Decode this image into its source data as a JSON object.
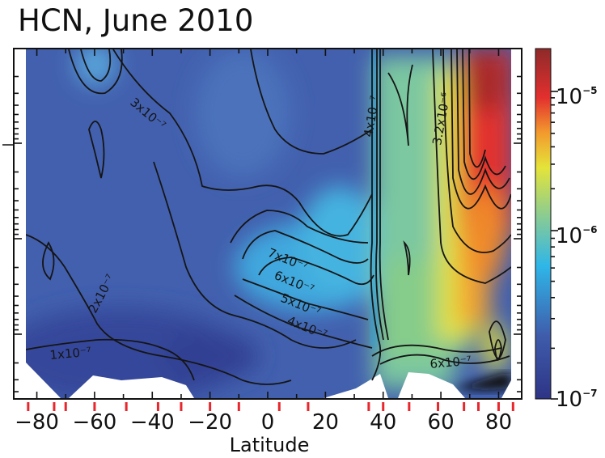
{
  "chart_data": {
    "type": "heatmap",
    "title": "HCN, June 2010",
    "xlabel": "Latitude",
    "ylabel": "",
    "xlim": [
      -88,
      88
    ],
    "x_ticks": [
      -80,
      -60,
      -40,
      -20,
      0,
      20,
      40,
      60,
      80
    ],
    "x_tick_labels": [
      "−80",
      "−60",
      "−40",
      "−20",
      "0",
      "20",
      "40",
      "60",
      "80"
    ],
    "y_scale": "log",
    "colorbar": {
      "scale": "log",
      "range": [
        1e-07,
        2e-05
      ],
      "ticks": [
        {
          "base": "10",
          "exp": "−5"
        },
        {
          "base": "10",
          "exp": "−6"
        },
        {
          "base": "10",
          "exp": "−7"
        }
      ],
      "colormap": [
        "#2e3486",
        "#3f5cab",
        "#2fb6e8",
        "#7cc8a0",
        "#e4e43a",
        "#f29a2e",
        "#e2302e",
        "#8e2a2a"
      ]
    },
    "contour_labels": [
      "3x10⁻⁷",
      "2x10⁻⁷",
      "1x10⁻⁷",
      "7x10⁻⁷",
      "6x10⁻⁷",
      "5x10⁻⁷",
      "4x10⁻⁷",
      "6x10⁻⁷",
      "3.2x10⁻⁶",
      "4x10⁻⁷"
    ],
    "sample_latitudes": [
      -83,
      -74,
      -70,
      -60,
      -49,
      -38,
      -30,
      -20,
      -10,
      4,
      14,
      35,
      40,
      49,
      59,
      68,
      73,
      80,
      85
    ],
    "sample_marker_color": "#e8262b"
  }
}
